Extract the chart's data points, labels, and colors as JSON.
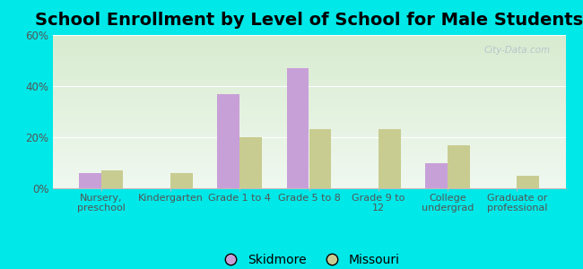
{
  "title": "School Enrollment by Level of School for Male Students",
  "categories": [
    "Nursery,\npreschool",
    "Kindergarten",
    "Grade 1 to 4",
    "Grade 5 to 8",
    "Grade 9 to\n12",
    "College\nundergrad",
    "Graduate or\nprofessional"
  ],
  "skidmore": [
    6,
    0,
    37,
    47,
    0,
    10,
    0
  ],
  "missouri": [
    7,
    6,
    20,
    23,
    23,
    17,
    5
  ],
  "skidmore_color": "#c8a0d8",
  "missouri_color": "#c8cc90",
  "background_color": "#00e8e8",
  "plot_bg_top": "#f0f8f0",
  "plot_bg_bottom": "#d8ecd0",
  "ylim": [
    0,
    60
  ],
  "yticks": [
    0,
    20,
    40,
    60
  ],
  "ytick_labels": [
    "0%",
    "20%",
    "40%",
    "60%"
  ],
  "title_fontsize": 14,
  "legend_labels": [
    "Skidmore",
    "Missouri"
  ],
  "bar_width": 0.32,
  "watermark": "City-Data.com"
}
